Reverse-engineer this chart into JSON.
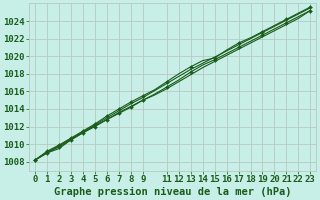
{
  "title": "Graphe pression niveau de la mer (hPa)",
  "background_color": "#c8eee8",
  "grid_color": "#b8c8c0",
  "line_color": "#1a5c1a",
  "xlim": [
    -0.5,
    23.5
  ],
  "ylim": [
    1007.0,
    1026.0
  ],
  "xticks": [
    0,
    1,
    2,
    3,
    4,
    5,
    6,
    7,
    8,
    9,
    11,
    12,
    13,
    14,
    15,
    16,
    17,
    18,
    19,
    20,
    21,
    22,
    23
  ],
  "yticks": [
    1008,
    1010,
    1012,
    1014,
    1016,
    1018,
    1020,
    1022,
    1024
  ],
  "series": [
    {
      "x": [
        0,
        1,
        2,
        3,
        4,
        5,
        6,
        7,
        8,
        9,
        10,
        11,
        12,
        13,
        14,
        15,
        16,
        17,
        18,
        19,
        20,
        21,
        22,
        23
      ],
      "y": [
        1008.2,
        1009.0,
        1009.5,
        1010.5,
        1011.3,
        1012.1,
        1012.8,
        1013.6,
        1014.3,
        1015.0,
        1015.6,
        1016.3,
        1017.1,
        1017.9,
        1018.7,
        1019.4,
        1020.1,
        1020.8,
        1021.5,
        1022.2,
        1022.9,
        1023.6,
        1024.3,
        1025.2
      ],
      "marker": false
    },
    {
      "x": [
        0,
        1,
        2,
        3,
        4,
        5,
        6,
        7,
        8,
        9,
        10,
        11,
        12,
        13,
        14,
        15,
        16,
        17,
        18,
        19,
        20,
        21,
        22,
        23
      ],
      "y": [
        1008.2,
        1009.1,
        1009.8,
        1010.6,
        1011.4,
        1012.2,
        1013.0,
        1013.8,
        1014.6,
        1015.3,
        1016.1,
        1016.9,
        1017.7,
        1018.5,
        1019.2,
        1019.9,
        1020.6,
        1021.3,
        1022.0,
        1022.7,
        1023.4,
        1024.1,
        1024.8,
        1025.5
      ],
      "marker": false
    },
    {
      "x": [
        0,
        1,
        2,
        3,
        4,
        5,
        6,
        7,
        8,
        9,
        10,
        11,
        12,
        13,
        14,
        15,
        16,
        17,
        18,
        19,
        20,
        21,
        22,
        23
      ],
      "y": [
        1008.2,
        1009.2,
        1009.9,
        1010.7,
        1011.5,
        1012.3,
        1013.2,
        1014.0,
        1014.8,
        1015.5,
        1016.2,
        1017.1,
        1018.0,
        1018.8,
        1019.5,
        1019.8,
        1020.7,
        1021.5,
        1022.1,
        1022.8,
        1023.5,
        1024.2,
        1024.9,
        1025.6
      ],
      "marker": true,
      "marker_x": [
        0,
        1,
        2,
        3,
        4,
        5,
        6,
        7,
        8,
        9,
        11,
        13,
        15,
        17,
        19,
        21,
        23
      ],
      "marker_y": [
        1008.2,
        1009.2,
        1009.9,
        1010.7,
        1011.5,
        1012.3,
        1013.2,
        1014.0,
        1014.8,
        1015.5,
        1017.1,
        1018.8,
        1019.8,
        1021.5,
        1022.8,
        1024.2,
        1025.6
      ]
    },
    {
      "x": [
        0,
        1,
        2,
        3,
        4,
        5,
        6,
        7,
        8,
        9,
        10,
        11,
        12,
        13,
        14,
        15,
        16,
        17,
        18,
        19,
        20,
        21,
        22,
        23
      ],
      "y": [
        1008.2,
        1009.0,
        1009.7,
        1010.5,
        1011.3,
        1012.0,
        1012.8,
        1013.5,
        1014.2,
        1015.0,
        1015.7,
        1016.5,
        1017.3,
        1018.2,
        1019.0,
        1019.6,
        1020.3,
        1021.0,
        1021.7,
        1022.4,
        1023.1,
        1023.8,
        1024.5,
        1025.2
      ],
      "marker": true,
      "marker_x": [
        0,
        1,
        2,
        3,
        4,
        5,
        6,
        7,
        8,
        9,
        11,
        13,
        15,
        17,
        19,
        21,
        23
      ],
      "marker_y": [
        1008.2,
        1009.0,
        1009.7,
        1010.5,
        1011.3,
        1012.0,
        1012.8,
        1013.5,
        1014.2,
        1015.0,
        1016.5,
        1018.2,
        1019.6,
        1021.0,
        1022.4,
        1023.8,
        1025.2
      ]
    }
  ],
  "title_fontsize": 7.5,
  "tick_fontsize": 6.5
}
